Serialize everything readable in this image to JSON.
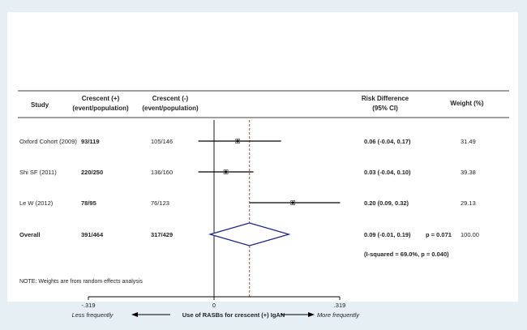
{
  "colors": {
    "background": "#e6f0f4",
    "panel": "#ffffff",
    "diamond": "#1a237e",
    "reference_line": "#b03030",
    "ci_line": "#000000"
  },
  "headers": {
    "study": "Study",
    "crescent_pos": "Crescent (+)",
    "crescent_pos_sub": "(event/population)",
    "crescent_neg": "Crescent (-)",
    "crescent_neg_sub": "(event/population)",
    "rd": "Risk Difference",
    "rd_sub": "(95% CI)",
    "weight": "Weight (%)"
  },
  "note": "NOTE: Weights are from random effects analysis",
  "heterogeneity": "(I-squared = 69.0%, p = 0.040)",
  "axis": {
    "left_caption": "Less frequently",
    "center_caption": "Use of RASBs for crescent (+) IgAN",
    "right_caption": "More frequently"
  },
  "chart_data": {
    "type": "forest",
    "xlim": [
      -0.319,
      0.319
    ],
    "x_ticks": [
      -0.319,
      0,
      0.319
    ],
    "x_tick_labels": [
      "-.319",
      "0",
      ".319"
    ],
    "overall_effect": 0.09,
    "studies": [
      {
        "name": "Oxford Cohort (2009)",
        "pos": "93/119",
        "neg": "105/146",
        "rd": 0.06,
        "lo": -0.04,
        "hi": 0.17,
        "rd_text": "0.06 (-0.04, 0.17)",
        "weight": "31.49"
      },
      {
        "name": "Shi SF (2011)",
        "pos": "220/250",
        "neg": "136/160",
        "rd": 0.03,
        "lo": -0.04,
        "hi": 0.1,
        "rd_text": "0.03 (-0.04, 0.10)",
        "weight": "39.38"
      },
      {
        "name": "Le W (2012)",
        "pos": "78/95",
        "neg": "76/123",
        "rd": 0.2,
        "lo": 0.09,
        "hi": 0.32,
        "rd_text": "0.20 (0.09, 0.32)",
        "weight": "29.13"
      }
    ],
    "overall": {
      "name": "Overall",
      "pos": "391/464",
      "neg": "317/429",
      "rd": 0.09,
      "lo": -0.01,
      "hi": 0.19,
      "rd_text": "0.09 (-0.01, 0.19)",
      "p_text": "p = 0.071",
      "weight": "100.00"
    }
  }
}
